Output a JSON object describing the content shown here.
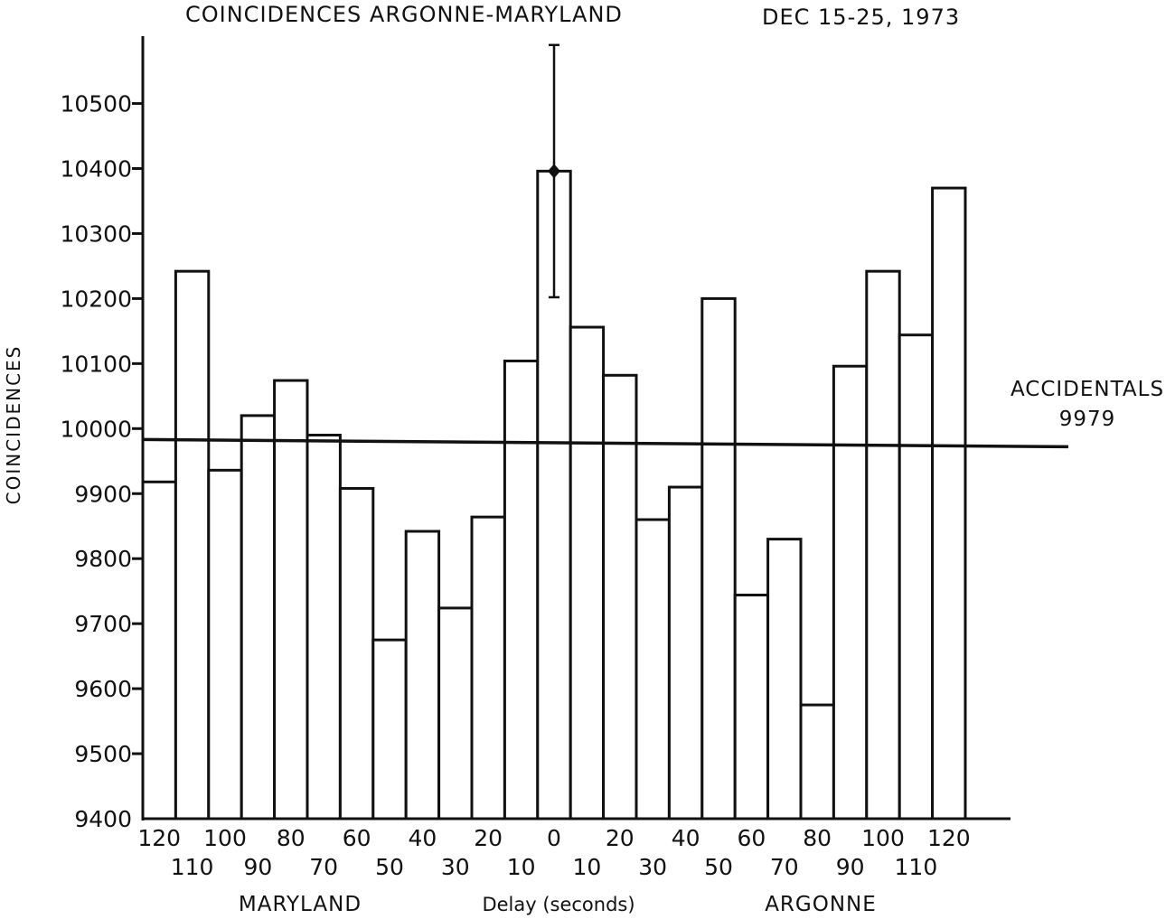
{
  "chart_data": {
    "type": "bar",
    "title": "COINCIDENCES ARGONNE-MARYLAND",
    "subtitle": "DEC 15-25, 1973",
    "ylabel": "COINCIDENCES",
    "xlabel": "Delay (seconds)",
    "ylim": [
      9400,
      10600
    ],
    "y_ticks": [
      "9400",
      "9500",
      "9600",
      "9700",
      "9800",
      "9900",
      "10000",
      "10100",
      "10200",
      "10300",
      "10400",
      "10500"
    ],
    "categories": [
      "120",
      "110",
      "100",
      "90",
      "80",
      "70",
      "60",
      "50",
      "40",
      "30",
      "20",
      "10",
      "0",
      "10",
      "20",
      "30",
      "40",
      "50",
      "60",
      "70",
      "80",
      "90",
      "100",
      "110",
      "120"
    ],
    "values": [
      9918,
      10242,
      9936,
      10020,
      10074,
      9990,
      9908,
      9675,
      9842,
      9724,
      9864,
      10104,
      10396,
      10156,
      10082,
      9860,
      9910,
      10200,
      9744,
      9830,
      9575,
      10096,
      10242,
      10144,
      10370
    ],
    "group_labels": [
      "MARYLAND",
      "ARGONNE"
    ],
    "reference_line": {
      "label": "ACCIDENTALS",
      "value_text": "9979",
      "value": 9979
    },
    "error_bar": {
      "category_index": 12,
      "value": 10396,
      "low": 10202,
      "high": 10590
    },
    "grid": false,
    "legend": "none"
  }
}
